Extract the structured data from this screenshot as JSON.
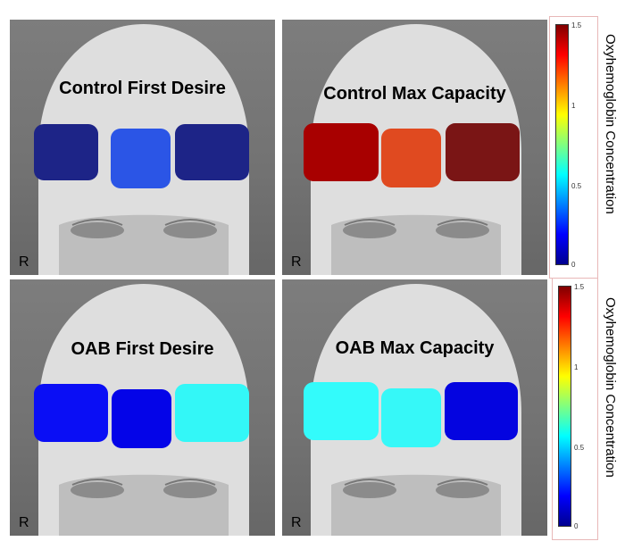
{
  "panels": [
    {
      "title": "Control First Desire",
      "side_label": "R",
      "roi_colors": [
        "#1d2487",
        "#2b55e6",
        "#1d2487"
      ]
    },
    {
      "title": "Control Max Capacity",
      "side_label": "R",
      "roi_colors": [
        "#a80000",
        "#e04a20",
        "#7a1515"
      ]
    },
    {
      "title": "OAB First Desire",
      "side_label": "R",
      "roi_colors": [
        "#0a0ef5",
        "#0404e8",
        "#33f7f7"
      ]
    },
    {
      "title": "OAB Max Capacity",
      "side_label": "R",
      "roi_colors": [
        "#33fbfb",
        "#36f8f8",
        "#0404e0"
      ]
    }
  ],
  "colorbars": [
    {
      "label": "Oxyhemoglobin Concentration",
      "ticks": [
        "1.5",
        "1",
        "0.5",
        "0"
      ]
    },
    {
      "label": "Oxyhemoglobin Concentration",
      "ticks": [
        "1.5",
        "1",
        "0.5",
        "0"
      ]
    }
  ]
}
